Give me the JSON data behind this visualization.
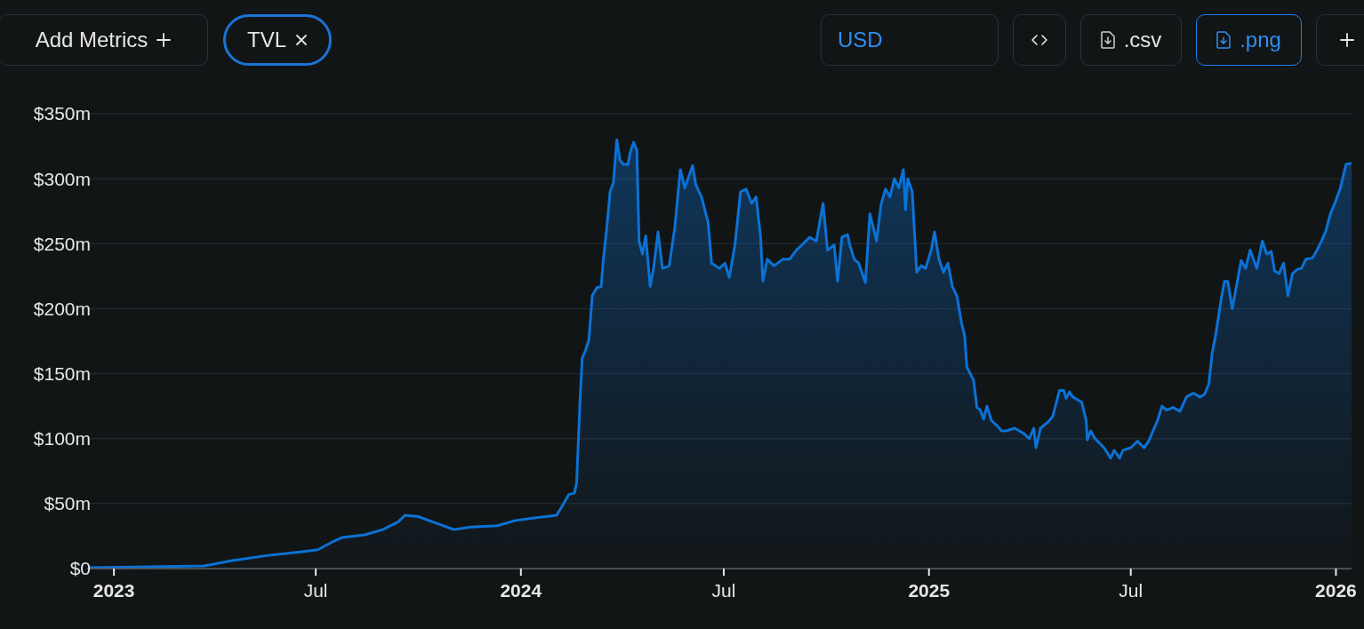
{
  "chart_data": {
    "type": "area",
    "annotations": [
      "Add Metrics",
      "TVL",
      "USD",
      ".csv",
      ".png"
    ],
    "x": [
      "2022-12-10",
      "2023-03-23",
      "2023-04-16",
      "2023-05-18",
      "2023-06-19",
      "2023-07-03",
      "2023-07-17",
      "2023-07-25",
      "2023-08-14",
      "2023-08-30",
      "2023-09-13",
      "2023-09-19",
      "2023-10-01",
      "2023-10-17",
      "2023-11-02",
      "2023-11-17",
      "2023-12-11",
      "2023-12-27",
      "2024-01-13",
      "2024-02-02",
      "2024-02-07",
      "2024-02-13",
      "2024-02-18",
      "2024-02-20",
      "2024-02-23",
      "2024-02-25",
      "2024-02-28",
      "2024-03-02",
      "2024-03-05",
      "2024-03-09",
      "2024-03-13",
      "2024-03-15",
      "2024-03-18",
      "2024-03-21",
      "2024-03-24",
      "2024-03-27",
      "2024-03-30",
      "2024-04-02",
      "2024-04-06",
      "2024-04-08",
      "2024-04-11",
      "2024-04-14",
      "2024-04-16",
      "2024-04-19",
      "2024-04-22",
      "2024-04-26",
      "2024-04-29",
      "2024-05-03",
      "2024-05-07",
      "2024-05-13",
      "2024-05-18",
      "2024-05-23",
      "2024-05-27",
      "2024-06-03",
      "2024-06-06",
      "2024-06-11",
      "2024-06-17",
      "2024-06-20",
      "2024-06-27",
      "2024-07-02",
      "2024-07-06",
      "2024-07-11",
      "2024-07-16",
      "2024-07-21",
      "2024-07-26",
      "2024-07-30",
      "2024-08-03",
      "2024-08-05",
      "2024-08-09",
      "2024-08-15",
      "2024-08-23",
      "2024-08-29",
      "2024-09-04",
      "2024-09-09",
      "2024-09-16",
      "2024-09-22",
      "2024-09-28",
      "2024-10-02",
      "2024-10-08",
      "2024-10-11",
      "2024-10-15",
      "2024-10-20",
      "2024-10-22",
      "2024-10-26",
      "2024-10-30",
      "2024-11-05",
      "2024-11-09",
      "2024-11-15",
      "2024-11-19",
      "2024-11-23",
      "2024-11-27",
      "2024-12-01",
      "2024-12-05",
      "2024-12-09",
      "2024-12-11",
      "2024-12-13",
      "2024-12-17",
      "2024-12-21",
      "2024-12-25",
      "2024-12-29",
      "2025-01-03",
      "2025-01-06",
      "2025-01-10",
      "2025-01-14",
      "2025-01-18",
      "2025-01-22",
      "2025-01-26",
      "2025-01-30",
      "2025-02-02",
      "2025-02-04",
      "2025-02-10",
      "2025-02-13",
      "2025-02-16",
      "2025-02-19",
      "2025-02-22",
      "2025-02-26",
      "2025-03-03",
      "2025-03-07",
      "2025-03-11",
      "2025-03-19",
      "2025-03-27",
      "2025-04-01",
      "2025-04-05",
      "2025-04-07",
      "2025-04-11",
      "2025-04-18",
      "2025-04-22",
      "2025-04-28",
      "2025-05-02",
      "2025-05-04",
      "2025-05-07",
      "2025-05-10",
      "2025-05-18",
      "2025-05-22",
      "2025-05-23",
      "2025-05-26",
      "2025-05-30",
      "2025-06-07",
      "2025-06-13",
      "2025-06-16",
      "2025-06-21",
      "2025-06-24",
      "2025-07-01",
      "2025-07-07",
      "2025-07-13",
      "2025-07-17",
      "2025-07-25",
      "2025-07-29",
      "2025-08-02",
      "2025-08-08",
      "2025-08-14",
      "2025-08-20",
      "2025-08-26",
      "2025-09-01",
      "2025-09-05",
      "2025-09-09",
      "2025-09-12",
      "2025-09-15",
      "2025-09-20",
      "2025-09-23",
      "2025-09-26",
      "2025-09-30",
      "2025-10-05",
      "2025-10-08",
      "2025-10-12",
      "2025-10-16",
      "2025-10-22",
      "2025-10-27",
      "2025-10-31",
      "2025-11-04",
      "2025-11-07",
      "2025-11-11",
      "2025-11-15",
      "2025-11-19",
      "2025-11-23",
      "2025-11-27",
      "2025-12-01",
      "2025-12-05",
      "2025-12-11",
      "2025-12-15",
      "2025-12-19",
      "2025-12-23",
      "2025-12-27",
      "2025-12-31",
      "2026-01-05",
      "2026-01-10",
      "2026-01-15"
    ],
    "series": [
      {
        "color": "#0b72d6",
        "values": [
          0.7,
          2,
          6,
          10,
          13,
          14.5,
          21,
          24,
          26,
          30,
          36,
          41,
          40,
          35,
          30,
          32,
          33,
          37,
          39,
          41,
          48,
          57,
          58,
          66,
          128,
          162,
          168,
          176,
          210,
          216,
          217,
          238,
          262,
          290,
          297,
          330,
          314,
          311,
          311,
          320,
          328,
          322,
          252,
          242,
          256,
          217,
          231,
          259,
          231,
          233,
          262,
          307,
          293,
          310,
          295,
          286,
          266,
          235,
          231,
          235,
          224,
          249,
          290,
          292,
          281,
          286,
          255,
          221,
          238,
          233,
          238,
          238,
          245,
          249,
          255,
          252,
          281,
          245,
          249,
          221,
          255,
          257,
          249,
          238,
          235,
          220,
          273,
          252,
          280,
          292,
          286,
          300,
          293,
          307,
          276,
          300,
          290,
          228,
          233,
          231,
          245,
          259,
          238,
          228,
          235,
          217,
          210,
          190,
          179,
          155,
          145,
          124,
          122,
          115,
          125,
          114,
          110,
          106,
          106,
          108,
          104,
          100,
          108,
          93,
          108,
          113,
          117,
          137,
          137,
          131,
          136,
          132,
          128,
          114,
          99,
          106,
          100,
          93,
          85,
          91,
          85,
          91,
          93,
          98,
          93,
          98,
          114,
          125,
          122,
          124,
          121,
          132,
          135,
          132,
          134,
          142,
          166,
          179,
          207,
          221,
          221,
          200,
          223,
          237,
          231,
          245,
          231,
          252,
          242,
          244,
          229,
          227,
          235,
          210,
          227,
          230,
          231,
          238,
          239,
          245,
          252,
          260,
          273,
          281,
          293,
          311,
          312
        ]
      }
    ],
    "xlim": [
      "2022-12-08",
      "2026-01-15"
    ],
    "xticks": [
      {
        "value": "2023-01-01",
        "label": "2023"
      },
      {
        "value": "2023-07-01",
        "label": "Jul"
      },
      {
        "value": "2024-01-01",
        "label": "2024"
      },
      {
        "value": "2024-07-01",
        "label": "Jul"
      },
      {
        "value": "2025-01-01",
        "label": "2025"
      },
      {
        "value": "2025-07-01",
        "label": "Jul"
      },
      {
        "value": "2026-01-01",
        "label": "2026"
      }
    ],
    "ylim": [
      0,
      350
    ],
    "yticks": [
      {
        "value": 0,
        "label": "$0"
      },
      {
        "value": 50,
        "label": "$50m"
      },
      {
        "value": 100,
        "label": "$100m"
      },
      {
        "value": 150,
        "label": "$150m"
      },
      {
        "value": 200,
        "label": "$200m"
      },
      {
        "value": 250,
        "label": "$250m"
      },
      {
        "value": 300,
        "label": "$300m"
      },
      {
        "value": 350,
        "label": "$350m"
      }
    ],
    "grid": "y"
  }
}
